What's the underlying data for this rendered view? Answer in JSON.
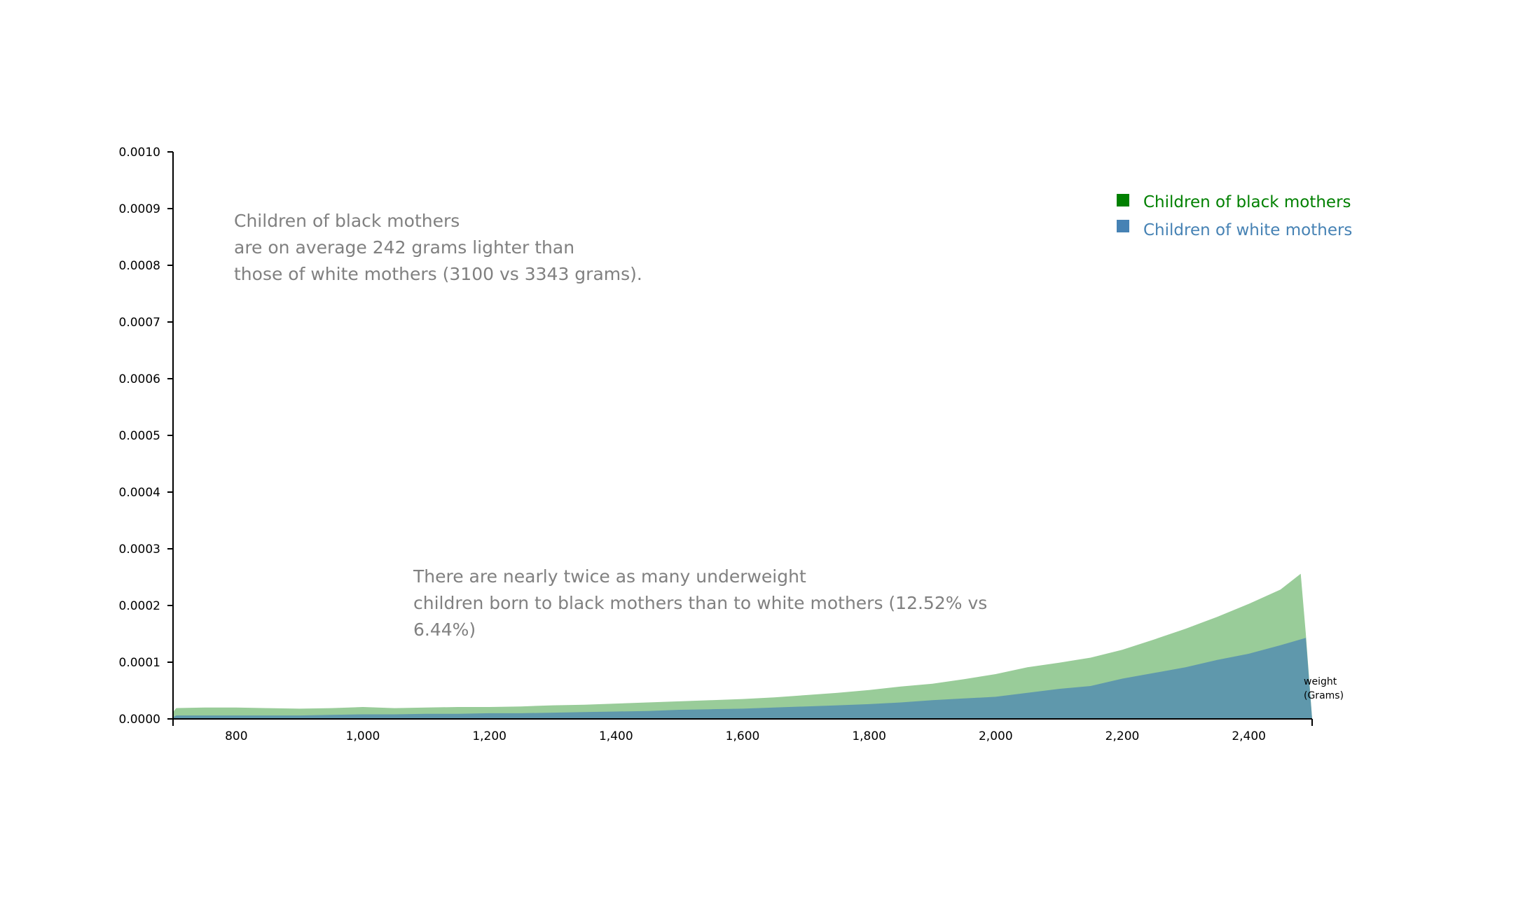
{
  "chart_data": {
    "type": "area",
    "title": "",
    "xlabel": "weight (Grams)",
    "xlabel_lines": [
      "weight",
      "(Grams)"
    ],
    "ylabel": "",
    "xlim": [
      700,
      2500
    ],
    "ylim": [
      0,
      0.001
    ],
    "x_ticks": [
      800,
      1000,
      1200,
      1400,
      1600,
      1800,
      2000,
      2200,
      2400
    ],
    "x_tick_labels": [
      "800",
      "1,000",
      "1,200",
      "1,400",
      "1,600",
      "1,800",
      "2,000",
      "2,200",
      "2,400"
    ],
    "y_ticks": [
      0,
      0.0001,
      0.0002,
      0.0003,
      0.0004,
      0.0005,
      0.0006,
      0.0007,
      0.0008,
      0.0009,
      0.001
    ],
    "y_tick_labels": [
      "0.0000",
      "0.0001",
      "0.0002",
      "0.0003",
      "0.0004",
      "0.0005",
      "0.0006",
      "0.0007",
      "0.0008",
      "0.0009",
      "0.0010"
    ],
    "grid": false,
    "legend_position": "top-right",
    "series": [
      {
        "name": "Children of black mothers",
        "color": "#008000",
        "fill": "#99cc99",
        "points": [
          [
            700,
            1.2e-05
          ],
          [
            705,
            1.9e-05
          ],
          [
            750,
            2e-05
          ],
          [
            800,
            2e-05
          ],
          [
            850,
            1.9e-05
          ],
          [
            900,
            1.8e-05
          ],
          [
            950,
            1.9e-05
          ],
          [
            1000,
            2.1e-05
          ],
          [
            1050,
            1.9e-05
          ],
          [
            1100,
            2e-05
          ],
          [
            1150,
            2.1e-05
          ],
          [
            1200,
            2.1e-05
          ],
          [
            1250,
            2.2e-05
          ],
          [
            1300,
            2.4e-05
          ],
          [
            1350,
            2.5e-05
          ],
          [
            1400,
            2.7e-05
          ],
          [
            1450,
            2.9e-05
          ],
          [
            1500,
            3.1e-05
          ],
          [
            1550,
            3.3e-05
          ],
          [
            1600,
            3.5e-05
          ],
          [
            1650,
            3.8e-05
          ],
          [
            1700,
            4.2e-05
          ],
          [
            1750,
            4.6e-05
          ],
          [
            1800,
            5.1e-05
          ],
          [
            1850,
            5.7e-05
          ],
          [
            1900,
            6.2e-05
          ],
          [
            1950,
            7e-05
          ],
          [
            2000,
            7.9e-05
          ],
          [
            2050,
            9.1e-05
          ],
          [
            2100,
            9.9e-05
          ],
          [
            2150,
            0.000108
          ],
          [
            2200,
            0.000122
          ],
          [
            2250,
            0.00014
          ],
          [
            2300,
            0.000159
          ],
          [
            2350,
            0.00018
          ],
          [
            2400,
            0.000203
          ],
          [
            2450,
            0.000228
          ],
          [
            2482,
            0.000256
          ],
          [
            2490,
            0.00015
          ],
          [
            2500,
            0.0
          ]
        ]
      },
      {
        "name": "Children of white mothers",
        "color": "#4682b4",
        "fill": "#4682b4",
        "points": [
          [
            700,
            3e-06
          ],
          [
            705,
            6e-06
          ],
          [
            750,
            6e-06
          ],
          [
            800,
            6e-06
          ],
          [
            850,
            6e-06
          ],
          [
            900,
            6e-06
          ],
          [
            950,
            7e-06
          ],
          [
            1000,
            8e-06
          ],
          [
            1050,
            8e-06
          ],
          [
            1100,
            9e-06
          ],
          [
            1150,
            9e-06
          ],
          [
            1200,
            1e-05
          ],
          [
            1250,
            1e-05
          ],
          [
            1300,
            1.1e-05
          ],
          [
            1350,
            1.2e-05
          ],
          [
            1400,
            1.3e-05
          ],
          [
            1450,
            1.4e-05
          ],
          [
            1500,
            1.6e-05
          ],
          [
            1550,
            1.7e-05
          ],
          [
            1600,
            1.8e-05
          ],
          [
            1650,
            2e-05
          ],
          [
            1700,
            2.2e-05
          ],
          [
            1750,
            2.4e-05
          ],
          [
            1800,
            2.6e-05
          ],
          [
            1850,
            2.9e-05
          ],
          [
            1900,
            3.3e-05
          ],
          [
            1950,
            3.6e-05
          ],
          [
            2000,
            3.9e-05
          ],
          [
            2050,
            4.6e-05
          ],
          [
            2100,
            5.3e-05
          ],
          [
            2150,
            5.8e-05
          ],
          [
            2200,
            7.1e-05
          ],
          [
            2250,
            8.1e-05
          ],
          [
            2300,
            9.1e-05
          ],
          [
            2350,
            0.000104
          ],
          [
            2400,
            0.000115
          ],
          [
            2450,
            0.00013
          ],
          [
            2490,
            0.000143
          ],
          [
            2500,
            0.0
          ]
        ]
      }
    ],
    "annotations": [
      {
        "lines": [
          "Children of black mothers",
          "are on average 242 grams lighter than",
          "those of white mothers (3100 vs 3343 grams)."
        ]
      },
      {
        "lines": [
          "There are nearly twice as many underweight",
          "children born to black mothers than to white mothers (12.52% vs",
          "6.44%)"
        ]
      }
    ]
  }
}
